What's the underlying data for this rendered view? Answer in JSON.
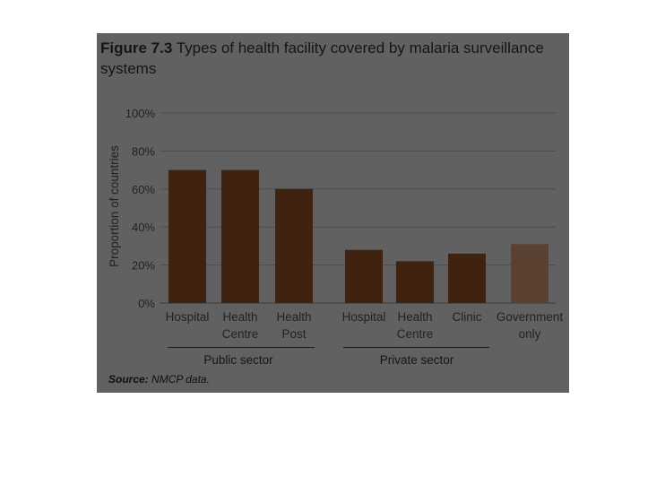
{
  "figure": {
    "label": "Figure 7.3",
    "title_text": "Types of health facility covered by malaria surveillance systems",
    "source_label": "Source:",
    "source_text": "NMCP data."
  },
  "chart_data": {
    "type": "bar",
    "title": "Types of health facility covered by malaria surveillance systems",
    "ylabel": "Proportion of countries",
    "xlabel": "",
    "ylim": [
      0,
      100
    ],
    "yticks": [
      "0%",
      "20%",
      "40%",
      "60%",
      "80%",
      "100%"
    ],
    "ytick_values": [
      0,
      20,
      40,
      60,
      80,
      100
    ],
    "grid": true,
    "categories": [
      {
        "lines": [
          "Hospital"
        ],
        "group": "Public sector"
      },
      {
        "lines": [
          "Health",
          "Centre"
        ],
        "group": "Public sector"
      },
      {
        "lines": [
          "Health",
          "Post"
        ],
        "group": "Public sector"
      },
      {
        "lines": [
          "Hospital"
        ],
        "group": "Private sector"
      },
      {
        "lines": [
          "Health",
          "Centre"
        ],
        "group": "Private sector"
      },
      {
        "lines": [
          "Clinic"
        ],
        "group": "Private sector"
      },
      {
        "lines": [
          "Government",
          "only"
        ],
        "group": ""
      }
    ],
    "values": [
      70,
      70,
      60,
      28,
      22,
      26,
      31
    ],
    "groups": [
      "Public sector",
      "Private sector"
    ],
    "colors": {
      "bar": "#402210",
      "bar_government": "#5b4131",
      "grid": "#4d4d4d",
      "panel": "#616161"
    }
  }
}
